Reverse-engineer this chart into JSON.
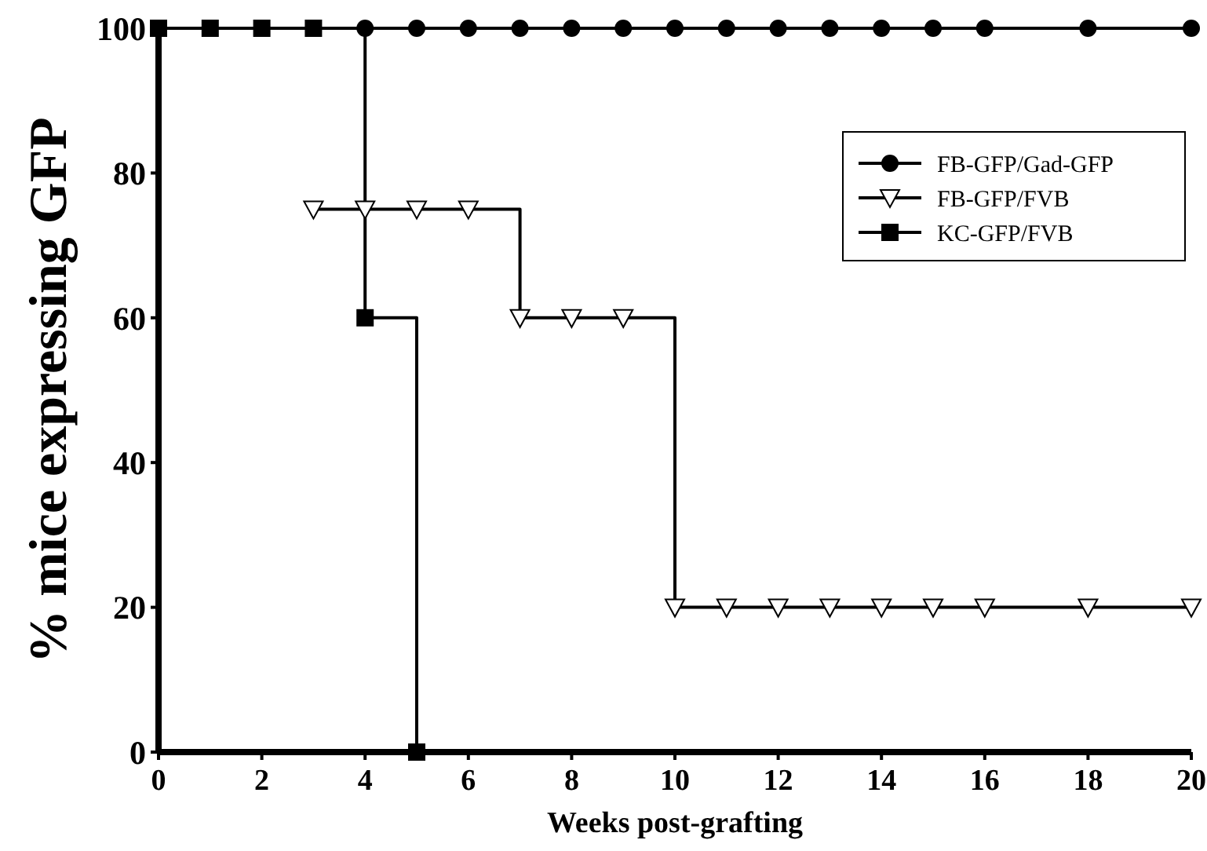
{
  "chart_data": {
    "type": "step",
    "xlabel": "Weeks post-grafting",
    "ylabel": "% mice expressing GFP",
    "xlim": [
      0,
      20
    ],
    "xticks": [
      0,
      2,
      4,
      6,
      8,
      10,
      12,
      14,
      16,
      18,
      20
    ],
    "ylim": [
      0,
      100
    ],
    "yticks": [
      0,
      20,
      40,
      60,
      80,
      100
    ],
    "grid": false,
    "legend": "top right",
    "series": [
      {
        "name": "FB-GFP/Gad-GFP",
        "color": "#000000",
        "marker": "circle",
        "x": [
          4,
          5,
          6,
          7,
          8,
          9,
          10,
          11,
          12,
          13,
          14,
          15,
          16,
          18,
          20
        ],
        "values": [
          100,
          100,
          100,
          100,
          100,
          100,
          100,
          100,
          100,
          100,
          100,
          100,
          100,
          100,
          100
        ]
      },
      {
        "name": "FB-GFP/FVB",
        "color": "#000000",
        "marker": "triangle",
        "x": [
          3,
          4,
          5,
          6,
          7,
          8,
          9,
          10,
          11,
          12,
          13,
          14,
          15,
          16,
          18,
          20
        ],
        "values": [
          75,
          75,
          75,
          75,
          60,
          60,
          60,
          20,
          20,
          20,
          20,
          20,
          20,
          20,
          20,
          20
        ]
      },
      {
        "name": "KC-GFP/FVB",
        "color": "#000000",
        "marker": "square",
        "x": [
          0,
          1,
          2,
          3,
          4,
          5
        ],
        "values": [
          100,
          100,
          100,
          100,
          60,
          0
        ]
      }
    ]
  }
}
